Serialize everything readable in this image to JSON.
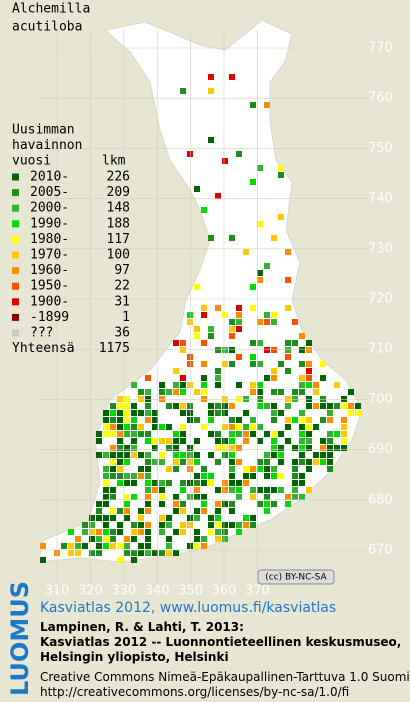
{
  "map": {
    "title": [
      "Alchemilla",
      "acutiloba"
    ],
    "legend": {
      "heading": [
        "Uusimman",
        "havainnon",
        "vuosi"
      ],
      "count_heading": "lkm",
      "rows": [
        {
          "label": "2010-",
          "count": 226,
          "color": "#006400"
        },
        {
          "label": "2005-",
          "count": 209,
          "color": "#1e8c1e"
        },
        {
          "label": "2000-",
          "count": 148,
          "color": "#32b432"
        },
        {
          "label": "1990-",
          "count": 188,
          "color": "#00dc00"
        },
        {
          "label": "1980-",
          "count": 117,
          "color": "#ffff00"
        },
        {
          "label": "1970-",
          "count": 100,
          "color": "#ffc800"
        },
        {
          "label": "1960-",
          "count": 97,
          "color": "#ff8c00"
        },
        {
          "label": "1950-",
          "count": 22,
          "color": "#ff5000"
        },
        {
          "label": "1900-",
          "count": 31,
          "color": "#dc0000"
        },
        {
          "label": "-1899",
          "count": 1,
          "color": "#8c0000"
        },
        {
          "label": "???",
          "count": 36,
          "color": "#c8c8c8"
        }
      ],
      "total_label": "Yhteensä",
      "total": 1175
    },
    "yticks": [
      770,
      760,
      750,
      740,
      730,
      720,
      710,
      700,
      690,
      680,
      670
    ],
    "xticks": [
      310,
      320,
      330,
      340,
      350,
      360,
      370
    ],
    "license_badge": "(cc) BY-NC-SA",
    "brand": "LUOMUS",
    "credits": [
      "Kasviatlas 2012, www.luomus.fi/kasviatlas",
      "Lampinen, R. & Lahti, T. 2013:",
      "Kasviatlas 2012 -- Luonnontieteellinen keskusmuseo,",
      "Helsingin yliopisto, Helsinki",
      "Creative Commons Nimeä-Epäkaupallinen-Tarttuva 1.0 Suomi",
      "http://creativecommons.org/licenses/by-nc-sa/1.0/fi"
    ]
  }
}
